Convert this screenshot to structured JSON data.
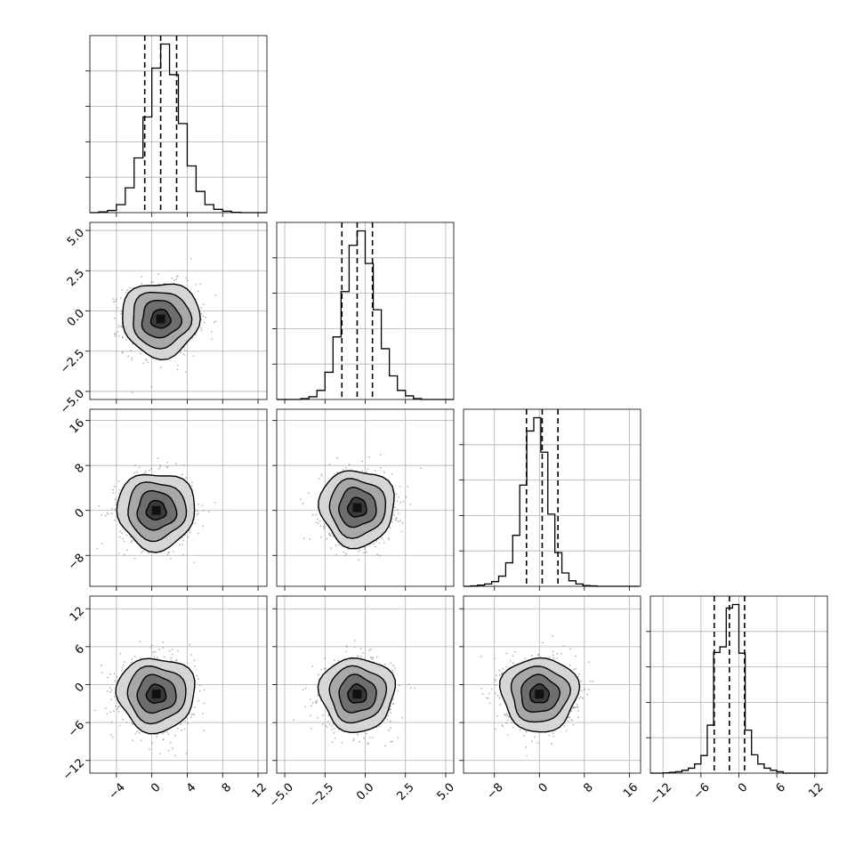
{
  "chart_data": {
    "type": "corner",
    "description_free": true,
    "parameters": [
      {
        "range": [
          -7,
          13
        ],
        "xticks": [
          -4,
          0,
          4,
          8,
          12
        ],
        "xticklabels": [
          "−4",
          "0",
          "4",
          "8",
          "12"
        ],
        "yticks": [],
        "yticklabels": [],
        "center": 1.0,
        "sigma": 1.8,
        "quantiles": [
          -0.8,
          1.0,
          2.8
        ]
      },
      {
        "range": [
          -5.5,
          5.5
        ],
        "xticks": [
          -5.0,
          -2.5,
          0.0,
          2.5,
          5.0
        ],
        "xticklabels": [
          "−5.0",
          "−2.5",
          "0.0",
          "2.5",
          "5.0"
        ],
        "yticks": [
          -5.0,
          -2.5,
          0.0,
          2.5,
          5.0
        ],
        "yticklabels": [
          "−5.0",
          "−2.5",
          "0.0",
          "2.5",
          "5.0"
        ],
        "center": -0.5,
        "sigma": 0.95,
        "quantiles": [
          -1.45,
          -0.5,
          0.45
        ]
      },
      {
        "range": [
          -13.5,
          18
        ],
        "xticks": [
          -8,
          0,
          8,
          16
        ],
        "xticklabels": [
          "−8",
          "0",
          "8",
          "16"
        ],
        "yticks": [
          -8,
          0,
          8,
          16
        ],
        "yticklabels": [
          "−8",
          "0",
          "8",
          "16"
        ],
        "center": 0.5,
        "sigma": 2.8,
        "quantiles": [
          -2.3,
          0.5,
          3.3
        ]
      },
      {
        "range": [
          -14,
          14
        ],
        "xticks": [
          -12,
          -6,
          0,
          6,
          12
        ],
        "xticklabels": [
          "−12",
          "−6",
          "0",
          "6",
          "12"
        ],
        "yticks": [
          -12,
          -6,
          0,
          6,
          12
        ],
        "yticklabels": [
          "−12",
          "−6",
          "0",
          "6",
          "12"
        ],
        "center": -1.5,
        "sigma": 2.4,
        "quantiles": [
          -3.9,
          -1.5,
          0.9
        ]
      }
    ],
    "histograms": [
      {
        "param": 0,
        "edges": [
          -7,
          -6,
          -5,
          -4,
          -3,
          -2,
          -1,
          0,
          1,
          2,
          3,
          4,
          5,
          6,
          7,
          8,
          9,
          10,
          11,
          12,
          13
        ],
        "counts": [
          0,
          2,
          6,
          22,
          68,
          150,
          262,
          396,
          462,
          378,
          244,
          128,
          58,
          22,
          9,
          4,
          1,
          0,
          0,
          0
        ]
      },
      {
        "param": 1,
        "edges": [
          -5.5,
          -5.0,
          -4.5,
          -4.0,
          -3.5,
          -3.0,
          -2.5,
          -2.0,
          -1.5,
          -1.0,
          -0.5,
          0.0,
          0.5,
          1.0,
          1.5,
          2.0,
          2.5,
          3.0,
          3.5,
          4.0,
          4.5,
          5.0,
          5.5
        ],
        "counts": [
          0,
          0,
          0,
          2,
          6,
          20,
          60,
          138,
          238,
          340,
          372,
          300,
          198,
          112,
          52,
          20,
          8,
          2,
          0,
          0,
          0,
          0
        ]
      },
      {
        "param": 2,
        "edges": [
          -13.5,
          -12.25,
          -11,
          -9.75,
          -8.5,
          -7.25,
          -6,
          -4.75,
          -3.5,
          -2.25,
          -1,
          0.25,
          1.5,
          2.75,
          4,
          5.25,
          6.5,
          7.75,
          9,
          10.25,
          11.5,
          12.75,
          14,
          15.25,
          16.5,
          17.75
        ],
        "counts": [
          0,
          1,
          3,
          6,
          12,
          26,
          60,
          130,
          258,
          396,
          430,
          342,
          184,
          86,
          34,
          14,
          6,
          2,
          1,
          0,
          0,
          0,
          0,
          0,
          0
        ]
      },
      {
        "param": 3,
        "edges": [
          -14,
          -13,
          -12,
          -11,
          -10,
          -9,
          -8,
          -7,
          -6,
          -5,
          -4,
          -3,
          -2,
          -1,
          0,
          1,
          2,
          3,
          4,
          5,
          6,
          7,
          8,
          9,
          10,
          11,
          12,
          13,
          14
        ],
        "counts": [
          0,
          0,
          1,
          2,
          4,
          8,
          14,
          26,
          50,
          136,
          342,
          358,
          468,
          478,
          340,
          122,
          52,
          26,
          14,
          8,
          4,
          0,
          0,
          0,
          0,
          0,
          0,
          0
        ]
      }
    ],
    "pairs": [
      {
        "x": 0,
        "y": 1,
        "peak": [
          1.0,
          -0.5
        ],
        "contour_levels_sigma": [
          0.5,
          1.0,
          1.5,
          2.0
        ]
      },
      {
        "x": 0,
        "y": 2,
        "peak": [
          0.5,
          0.0
        ],
        "contour_levels_sigma": [
          0.5,
          1.0,
          1.5,
          2.0
        ]
      },
      {
        "x": 1,
        "y": 2,
        "peak": [
          -0.5,
          0.5
        ],
        "contour_levels_sigma": [
          0.5,
          1.0,
          1.5,
          2.0
        ]
      },
      {
        "x": 0,
        "y": 3,
        "peak": [
          0.5,
          -1.5
        ],
        "contour_levels_sigma": [
          0.5,
          1.0,
          1.5,
          2.0
        ]
      },
      {
        "x": 1,
        "y": 3,
        "peak": [
          -0.5,
          -1.5
        ],
        "contour_levels_sigma": [
          0.5,
          1.0,
          1.5,
          2.0
        ]
      },
      {
        "x": 2,
        "y": 3,
        "peak": [
          0.0,
          -1.5
        ],
        "contour_levels_sigma": [
          0.5,
          1.0,
          1.5,
          2.0
        ]
      }
    ],
    "grid": true,
    "title": "",
    "xlabel": "",
    "ylabel": ""
  }
}
